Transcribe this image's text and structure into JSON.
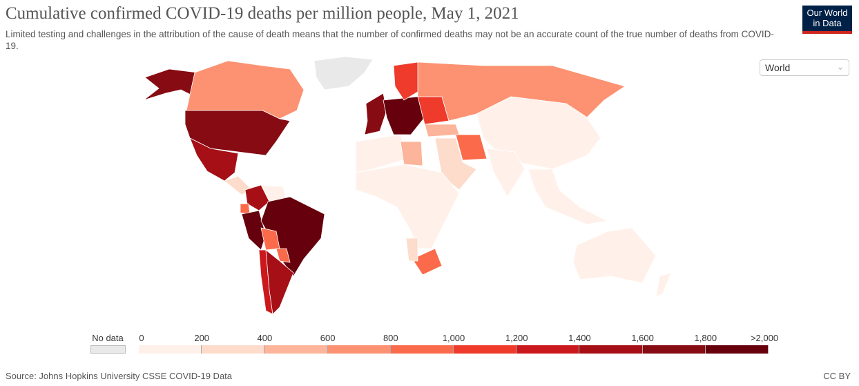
{
  "header": {
    "title": "Cumulative confirmed COVID-19 deaths per million people, May 1, 2021",
    "subtitle": "Limited testing and challenges in the attribution of the cause of death means that the number of confirmed deaths may not be an accurate count of the true number of deaths from COVID-19.",
    "logo": "Our World in Data"
  },
  "region_select": {
    "value": "World"
  },
  "footer": {
    "source": "Source: Johns Hopkins University CSSE COVID-19 Data",
    "license": "CC BY"
  },
  "chart_data": {
    "type": "map",
    "title": "Cumulative confirmed COVID-19 deaths per million people, May 1, 2021",
    "no_data_label": "No data",
    "no_data_color": "#e9e9e9",
    "legend_ticks": [
      "0",
      "200",
      "400",
      "600",
      "800",
      "1,000",
      "1,200",
      "1,400",
      "1,600",
      "1,800",
      ">2,000"
    ],
    "bins": [
      {
        "range": [
          0,
          200
        ],
        "color": "#fff1ea"
      },
      {
        "range": [
          200,
          400
        ],
        "color": "#fddccb"
      },
      {
        "range": [
          400,
          600
        ],
        "color": "#fcb49a"
      },
      {
        "range": [
          600,
          800
        ],
        "color": "#fc9272"
      },
      {
        "range": [
          800,
          1000
        ],
        "color": "#fb6a4a"
      },
      {
        "range": [
          1000,
          1200
        ],
        "color": "#ef3b2c"
      },
      {
        "range": [
          1200,
          1400
        ],
        "color": "#cb181d"
      },
      {
        "range": [
          1400,
          1600
        ],
        "color": "#a50f15"
      },
      {
        "range": [
          1600,
          1800
        ],
        "color": "#860b13"
      },
      {
        "range": [
          1800,
          2000
        ],
        "color": "#67000d"
      }
    ],
    "regions": [
      {
        "name": "Greenland",
        "bin": -1
      },
      {
        "name": "Alaska",
        "bin": 8
      },
      {
        "name": "Canada",
        "bin": 3
      },
      {
        "name": "United States",
        "bin": 8
      },
      {
        "name": "Mexico",
        "bin": 7
      },
      {
        "name": "Central America",
        "bin": 1
      },
      {
        "name": "Venezuela",
        "bin": 0
      },
      {
        "name": "Colombia",
        "bin": 7
      },
      {
        "name": "Ecuador",
        "bin": 4
      },
      {
        "name": "Peru",
        "bin": 9
      },
      {
        "name": "Brazil",
        "bin": 9
      },
      {
        "name": "Bolivia",
        "bin": 4
      },
      {
        "name": "Paraguay",
        "bin": 4
      },
      {
        "name": "Chile",
        "bin": 6
      },
      {
        "name": "Argentina",
        "bin": 7
      },
      {
        "name": "Western Europe",
        "bin": 8
      },
      {
        "name": "Central Europe",
        "bin": 9
      },
      {
        "name": "Scandinavia",
        "bin": 5
      },
      {
        "name": "Eastern Europe",
        "bin": 5
      },
      {
        "name": "Russia",
        "bin": 3
      },
      {
        "name": "Turkey",
        "bin": 2
      },
      {
        "name": "Iran",
        "bin": 4
      },
      {
        "name": "Middle East",
        "bin": 1
      },
      {
        "name": "North Africa",
        "bin": 0
      },
      {
        "name": "Libya",
        "bin": 2
      },
      {
        "name": "Sub-Saharan Africa",
        "bin": 0
      },
      {
        "name": "South Africa",
        "bin": 4
      },
      {
        "name": "Namibia",
        "bin": 1
      },
      {
        "name": "Central & East Asia",
        "bin": 0
      },
      {
        "name": "India",
        "bin": 0
      },
      {
        "name": "Southeast Asia",
        "bin": 0
      },
      {
        "name": "Australia",
        "bin": 0
      },
      {
        "name": "New Zealand",
        "bin": 0
      }
    ]
  }
}
